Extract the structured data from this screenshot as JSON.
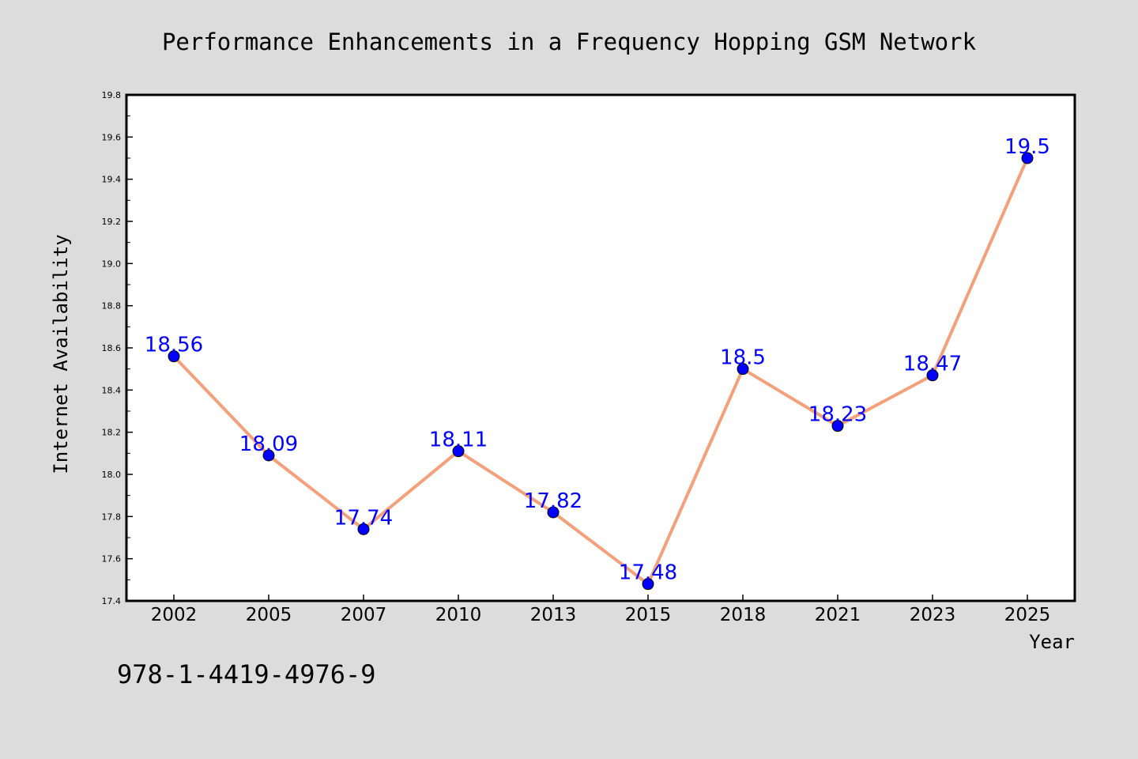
{
  "chart_data": {
    "type": "line",
    "title": "Performance Enhancements in a Frequency Hopping GSM Network",
    "xlabel": "Year",
    "ylabel": "Internet Availability",
    "categories": [
      "2002",
      "2005",
      "2007",
      "2010",
      "2013",
      "2015",
      "2018",
      "2021",
      "2023",
      "2025"
    ],
    "series": [
      {
        "values": [
          18.56,
          18.09,
          17.74,
          18.11,
          17.82,
          17.48,
          18.5,
          18.23,
          18.47,
          19.5
        ]
      }
    ],
    "data_labels": [
      "18.56",
      "18.09",
      "17.74",
      "18.11",
      "17.82",
      "17.48",
      "18.5",
      "18.23",
      "18.47",
      "19.5"
    ],
    "ylim": [
      17.4,
      19.8
    ],
    "yticks": [
      "17.4",
      "17.6",
      "17.8",
      "18.0",
      "18.2",
      "18.4",
      "18.6",
      "18.8",
      "19.0",
      "19.2",
      "19.4",
      "19.6",
      "19.8"
    ],
    "grid": false,
    "legend": "none",
    "colors": {
      "line": "#f4a07a",
      "marker": "#0000ff",
      "data_label": "#0000ff",
      "background": "#dcdcdc",
      "plot_background": "#ffffff"
    }
  },
  "footnote": "978-1-4419-4976-9"
}
